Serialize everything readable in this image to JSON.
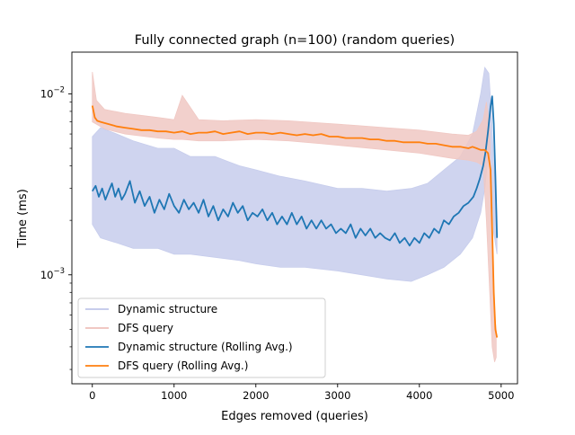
{
  "chart_data": {
    "type": "line",
    "title": "Fully connected graph (n=100) (random queries)",
    "xlabel": "Edges removed (queries)",
    "ylabel": "Time (ms)",
    "xlim": [
      -250,
      5200
    ],
    "ylim": [
      0.00025,
      0.017
    ],
    "yscale": "log",
    "grid": false,
    "legend_position": "lower-left",
    "x_ticks": [
      {
        "value": 0,
        "label": "0"
      },
      {
        "value": 1000,
        "label": "1000"
      },
      {
        "value": 2000,
        "label": "2000"
      },
      {
        "value": 3000,
        "label": "3000"
      },
      {
        "value": 4000,
        "label": "4000"
      },
      {
        "value": 5000,
        "label": "5000"
      }
    ],
    "y_ticks": [
      {
        "value": 0.001,
        "label": "10",
        "exp": "−3"
      },
      {
        "value": 0.01,
        "label": "10",
        "exp": "−2"
      }
    ],
    "series": [
      {
        "name": "Dynamic structure",
        "color": "#c7cdec",
        "kind": "band",
        "x": [
          0,
          100,
          300,
          500,
          800,
          1000,
          1200,
          1500,
          1800,
          2000,
          2300,
          2600,
          3000,
          3300,
          3600,
          3900,
          4100,
          4300,
          4500,
          4650,
          4750,
          4800,
          4850,
          4880,
          4910,
          4950
        ],
        "low": [
          0.0019,
          0.0016,
          0.0015,
          0.0014,
          0.0014,
          0.0013,
          0.0013,
          0.00125,
          0.0012,
          0.00115,
          0.0011,
          0.0011,
          0.00105,
          0.001,
          0.00095,
          0.00092,
          0.001,
          0.0011,
          0.0013,
          0.0016,
          0.0022,
          0.003,
          0.005,
          0.0035,
          0.0017,
          0.0013
        ],
        "high": [
          0.0058,
          0.0065,
          0.006,
          0.0055,
          0.005,
          0.005,
          0.0045,
          0.0045,
          0.004,
          0.0038,
          0.0035,
          0.0033,
          0.003,
          0.003,
          0.0029,
          0.003,
          0.0032,
          0.0038,
          0.0045,
          0.006,
          0.01,
          0.014,
          0.013,
          0.008,
          0.004,
          0.0021
        ]
      },
      {
        "name": "DFS query",
        "color": "#f0c8c3",
        "kind": "band",
        "x": [
          0,
          50,
          150,
          400,
          800,
          1000,
          1100,
          1300,
          1600,
          2000,
          2400,
          2800,
          3200,
          3600,
          4000,
          4400,
          4600,
          4700,
          4780,
          4820,
          4860,
          4890,
          4920,
          4940
        ],
        "low": [
          0.007,
          0.0068,
          0.0064,
          0.006,
          0.0057,
          0.0056,
          0.0056,
          0.0055,
          0.0055,
          0.0056,
          0.0055,
          0.0053,
          0.0051,
          0.0049,
          0.0047,
          0.0044,
          0.0043,
          0.0042,
          0.004,
          0.002,
          0.0008,
          0.0004,
          0.00033,
          0.00035
        ],
        "high": [
          0.0132,
          0.0092,
          0.0082,
          0.0078,
          0.0074,
          0.0072,
          0.0098,
          0.0072,
          0.0071,
          0.0072,
          0.0071,
          0.0069,
          0.0067,
          0.0065,
          0.0063,
          0.006,
          0.0059,
          0.0062,
          0.0072,
          0.009,
          0.0065,
          0.0015,
          0.0006,
          0.0005
        ]
      },
      {
        "name": "Dynamic structure (Rolling Avg.)",
        "color": "#1f77b4",
        "kind": "line",
        "x": [
          0,
          40,
          80,
          120,
          160,
          200,
          240,
          280,
          320,
          360,
          400,
          460,
          520,
          580,
          640,
          700,
          760,
          820,
          880,
          940,
          1000,
          1060,
          1120,
          1180,
          1240,
          1300,
          1360,
          1420,
          1480,
          1540,
          1600,
          1660,
          1720,
          1780,
          1840,
          1900,
          1960,
          2020,
          2080,
          2140,
          2200,
          2260,
          2320,
          2380,
          2440,
          2500,
          2560,
          2620,
          2680,
          2740,
          2800,
          2860,
          2920,
          2980,
          3040,
          3100,
          3160,
          3220,
          3280,
          3340,
          3400,
          3460,
          3520,
          3580,
          3640,
          3700,
          3760,
          3820,
          3880,
          3940,
          4000,
          4060,
          4120,
          4180,
          4240,
          4300,
          4360,
          4420,
          4480,
          4540,
          4600,
          4660,
          4700,
          4740,
          4780,
          4810,
          4840,
          4870,
          4890,
          4910,
          4930,
          4950
        ],
        "y": [
          0.0029,
          0.0031,
          0.0027,
          0.003,
          0.0026,
          0.0029,
          0.0032,
          0.0027,
          0.003,
          0.0026,
          0.0028,
          0.0033,
          0.0025,
          0.0029,
          0.0024,
          0.0027,
          0.0022,
          0.0026,
          0.0023,
          0.0028,
          0.0024,
          0.0022,
          0.0026,
          0.0023,
          0.0025,
          0.0022,
          0.0026,
          0.0021,
          0.0024,
          0.002,
          0.0023,
          0.0021,
          0.0025,
          0.0022,
          0.0024,
          0.002,
          0.0022,
          0.0021,
          0.0023,
          0.002,
          0.0022,
          0.0019,
          0.0021,
          0.0019,
          0.0022,
          0.0019,
          0.0021,
          0.0018,
          0.002,
          0.0018,
          0.002,
          0.0018,
          0.0019,
          0.0017,
          0.0018,
          0.0017,
          0.0019,
          0.0016,
          0.0018,
          0.00165,
          0.0018,
          0.0016,
          0.0017,
          0.0016,
          0.00155,
          0.0017,
          0.0015,
          0.0016,
          0.00145,
          0.0016,
          0.0015,
          0.0017,
          0.0016,
          0.0018,
          0.0017,
          0.002,
          0.0019,
          0.0021,
          0.0022,
          0.0024,
          0.0025,
          0.0027,
          0.003,
          0.0034,
          0.004,
          0.0048,
          0.0062,
          0.0085,
          0.0097,
          0.0068,
          0.0035,
          0.0016
        ]
      },
      {
        "name": "DFS query (Rolling Avg.)",
        "color": "#ff7f0e",
        "kind": "line",
        "x": [
          0,
          10,
          30,
          60,
          100,
          150,
          200,
          300,
          400,
          500,
          600,
          700,
          800,
          900,
          1000,
          1100,
          1200,
          1300,
          1400,
          1500,
          1600,
          1700,
          1800,
          1900,
          2000,
          2100,
          2200,
          2300,
          2400,
          2500,
          2600,
          2700,
          2800,
          2900,
          3000,
          3100,
          3200,
          3300,
          3400,
          3500,
          3600,
          3700,
          3800,
          3900,
          4000,
          4100,
          4200,
          4300,
          4400,
          4500,
          4600,
          4650,
          4700,
          4750,
          4800,
          4840,
          4870,
          4890,
          4910,
          4930,
          4950
        ],
        "y": [
          0.0086,
          0.0082,
          0.0074,
          0.0071,
          0.007,
          0.0069,
          0.0068,
          0.0066,
          0.0065,
          0.0064,
          0.0063,
          0.0063,
          0.0062,
          0.0062,
          0.0061,
          0.0062,
          0.006,
          0.0061,
          0.0061,
          0.0062,
          0.006,
          0.0061,
          0.0062,
          0.006,
          0.0061,
          0.0061,
          0.006,
          0.0061,
          0.006,
          0.0059,
          0.006,
          0.0059,
          0.006,
          0.0058,
          0.0058,
          0.0057,
          0.0057,
          0.0057,
          0.0056,
          0.0056,
          0.0055,
          0.0055,
          0.0054,
          0.0054,
          0.0054,
          0.0053,
          0.0053,
          0.0052,
          0.0051,
          0.0051,
          0.005,
          0.0051,
          0.005,
          0.0049,
          0.0049,
          0.0047,
          0.0038,
          0.0018,
          0.0008,
          0.0005,
          0.00045
        ]
      }
    ]
  }
}
